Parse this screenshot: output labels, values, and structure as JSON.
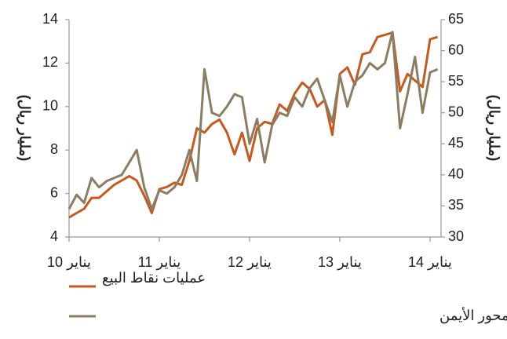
{
  "chart_data": {
    "type": "line",
    "categories": [
      "يناير 10",
      null,
      null,
      null,
      null,
      null,
      null,
      null,
      null,
      null,
      null,
      null,
      "يناير 11",
      null,
      null,
      null,
      null,
      null,
      null,
      null,
      null,
      null,
      null,
      null,
      "يناير 12",
      null,
      null,
      null,
      null,
      null,
      null,
      null,
      null,
      null,
      null,
      null,
      "يناير 13",
      null,
      null,
      null,
      null,
      null,
      null,
      null,
      null,
      null,
      null,
      null,
      "يناير 14",
      null
    ],
    "series": [
      {
        "name": "عمليات نقاط البيع",
        "color": "#c8591c",
        "axis": "y",
        "values": [
          4.9,
          5.1,
          5.3,
          5.8,
          5.8,
          6.1,
          6.4,
          6.6,
          6.8,
          6.6,
          5.9,
          5.1,
          6.2,
          6.3,
          6.5,
          6.4,
          7.5,
          9.0,
          8.8,
          9.2,
          9.4,
          8.8,
          7.8,
          8.8,
          7.5,
          9.0,
          9.3,
          9.2,
          10.1,
          9.8,
          10.6,
          11.1,
          10.8,
          10.0,
          10.3,
          8.7,
          11.5,
          11.8,
          11.0,
          12.4,
          12.5,
          13.2,
          13.3,
          13.4,
          10.7,
          11.5,
          11.2,
          10.9,
          13.1,
          13.2
        ]
      },
      {
        "name": "عمليات السحب من ماكينات الصرف الآلي - المحور الأيمن",
        "color": "#8b7d62",
        "axis": "y2",
        "values": [
          34.5,
          36.8,
          35.5,
          39.5,
          38,
          39,
          39.5,
          40,
          42,
          44,
          38,
          34.5,
          37.5,
          37,
          38,
          40,
          44,
          39,
          57,
          50,
          49.5,
          51,
          53,
          52.5,
          45,
          49,
          42,
          48,
          50,
          49.5,
          52.5,
          51,
          54,
          55.5,
          52,
          48.5,
          56,
          51,
          55,
          56,
          58,
          57,
          58,
          63,
          47.5,
          53,
          59,
          50,
          56.5,
          57
        ]
      }
    ],
    "y_label": "(مليار ريال)",
    "y2_label": "(مليار ريال)",
    "ylim": [
      4,
      14
    ],
    "yticks": [
      4,
      6,
      8,
      10,
      12,
      14
    ],
    "y2lim": [
      30,
      65
    ],
    "y2ticks": [
      30,
      35,
      40,
      45,
      50,
      55,
      60,
      65
    ],
    "grid": false
  }
}
